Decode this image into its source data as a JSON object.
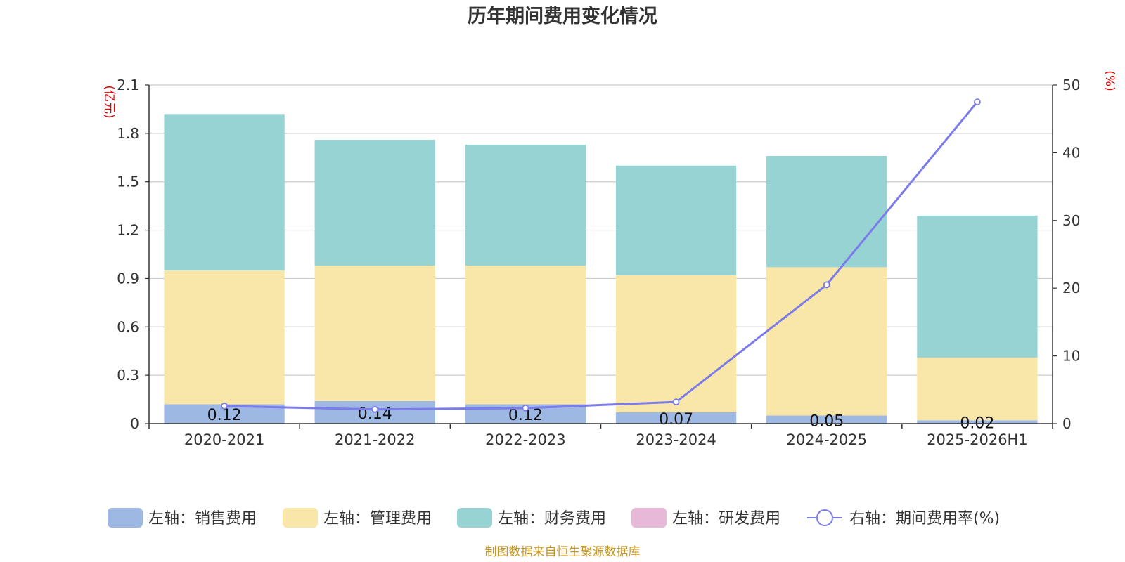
{
  "chart_data": {
    "type": "bar",
    "title": "历年期间费用变化情况",
    "ylabel_left": "(亿元)",
    "ylabel_right": "(%)",
    "ylim_left": [
      0,
      2.1
    ],
    "yticks_left": [
      "0",
      "0.3",
      "0.6",
      "0.9",
      "1.2",
      "1.5",
      "1.8",
      "2.1"
    ],
    "ylim_right": [
      0,
      50
    ],
    "yticks_right": [
      "0",
      "10",
      "20",
      "30",
      "40",
      "50"
    ],
    "categories": [
      "2020-2021",
      "2021-2022",
      "2022-2023",
      "2023-2024",
      "2024-2025",
      "2025-2026H1"
    ],
    "stacked": true,
    "series": [
      {
        "name": "左轴：销售费用",
        "axis": "left",
        "color": "#9db8e3",
        "values": [
          0.12,
          0.14,
          0.12,
          0.07,
          0.05,
          0.02
        ],
        "labels": [
          "0.12",
          "0.14",
          "0.12",
          "0.07",
          "0.05",
          "0.02"
        ]
      },
      {
        "name": "左轴：管理费用",
        "axis": "left",
        "color": "#f8e7a8",
        "values": [
          0.83,
          0.84,
          0.86,
          0.85,
          0.92,
          0.39
        ]
      },
      {
        "name": "左轴：财务费用",
        "axis": "left",
        "color": "#98d3d4",
        "values": [
          0.97,
          0.78,
          0.75,
          0.68,
          0.69,
          0.88
        ]
      },
      {
        "name": "左轴：研发费用",
        "axis": "left",
        "color": "#e8b8d8",
        "values": [
          0,
          0,
          0,
          0,
          0,
          0
        ]
      },
      {
        "name": "右轴：期间费用率(%)",
        "axis": "right",
        "type": "line",
        "color": "#7b7bea",
        "values": [
          2.6,
          2.1,
          2.3,
          3.2,
          20.5,
          47.5
        ]
      }
    ],
    "grid": true,
    "legend_position": "bottom",
    "footer": "制图数据来自恒生聚源数据库"
  }
}
